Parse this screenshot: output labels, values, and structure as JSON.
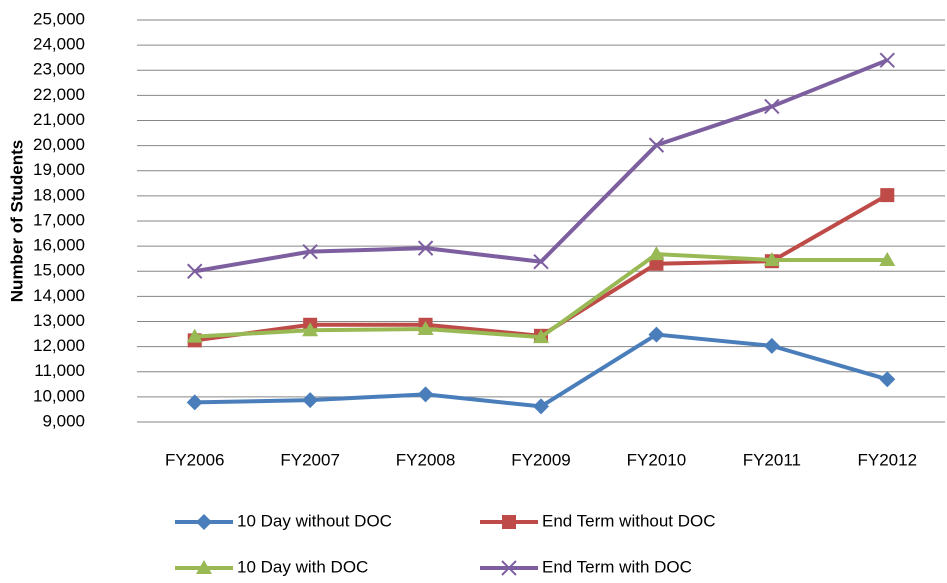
{
  "chart_data": {
    "type": "line",
    "y_label": "Number of Students",
    "categories": [
      "FY2006",
      "FY2007",
      "FY2008",
      "FY2009",
      "FY2010",
      "FY2011",
      "FY2012"
    ],
    "series": [
      {
        "name": "10 Day without DOC",
        "color": "#4a7ebb",
        "marker": "diamond",
        "values": [
          9780,
          9870,
          10100,
          9620,
          12480,
          12030,
          10700
        ]
      },
      {
        "name": "End Term without DOC",
        "color": "#be4b48",
        "marker": "square",
        "values": [
          12250,
          12870,
          12870,
          12430,
          15300,
          15400,
          18030
        ]
      },
      {
        "name": "10 Day with DOC",
        "color": "#98b954",
        "marker": "triangle",
        "values": [
          12400,
          12650,
          12700,
          12380,
          15680,
          15450,
          15450
        ]
      },
      {
        "name": "End Term with DOC",
        "color": "#7d5fa0",
        "marker": "x",
        "values": [
          15000,
          15780,
          15920,
          15380,
          20020,
          21560,
          23400
        ]
      }
    ],
    "ylim": [
      9000,
      25000
    ],
    "yticks": [
      {
        "value": 9000,
        "label": "9,000"
      },
      {
        "value": 10000,
        "label": "10,000"
      },
      {
        "value": 11000,
        "label": "11,000"
      },
      {
        "value": 12000,
        "label": "12,000"
      },
      {
        "value": 13000,
        "label": "13,000"
      },
      {
        "value": 14000,
        "label": "14,000"
      },
      {
        "value": 15000,
        "label": "15,000"
      },
      {
        "value": 16000,
        "label": "16,000"
      },
      {
        "value": 17000,
        "label": "17,000"
      },
      {
        "value": 18000,
        "label": "18,000"
      },
      {
        "value": 19000,
        "label": "19,000"
      },
      {
        "value": 20000,
        "label": "20,000"
      },
      {
        "value": 21000,
        "label": "21,000"
      },
      {
        "value": 22000,
        "label": "22,000"
      },
      {
        "value": 23000,
        "label": "23,000"
      },
      {
        "value": 24000,
        "label": "24,000"
      },
      {
        "value": 25000,
        "label": "25,000"
      }
    ],
    "grid": true
  }
}
